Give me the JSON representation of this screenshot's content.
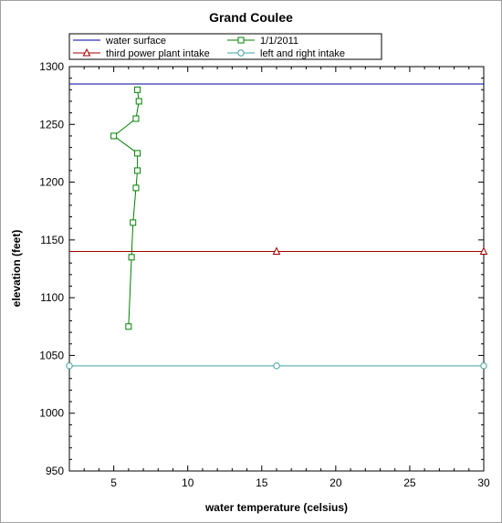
{
  "chart_data": {
    "type": "line",
    "title": "Grand Coulee",
    "xlabel": "water temperature (celsius)",
    "ylabel": "elevation (feet)",
    "xlim": [
      2,
      30
    ],
    "ylim": [
      950,
      1300
    ],
    "xticks": [
      5,
      10,
      15,
      20,
      25,
      30
    ],
    "yticks": [
      950,
      1000,
      1050,
      1100,
      1150,
      1200,
      1250,
      1300
    ],
    "grid": false,
    "legend_position": "top",
    "series": [
      {
        "name": "water surface",
        "color": "#0000a0",
        "marker": "none",
        "x": [
          2,
          30
        ],
        "y": [
          1285,
          1285
        ]
      },
      {
        "name": "1/1/2011",
        "color": "#008000",
        "marker": "square",
        "x": [
          6.6,
          6.7,
          6.5,
          5.0,
          6.6,
          6.6,
          6.5,
          6.3,
          6.2,
          6.0
        ],
        "y": [
          1280,
          1270,
          1255,
          1240,
          1225,
          1210,
          1195,
          1165,
          1135,
          1075
        ]
      },
      {
        "name": "third  power plant intake",
        "color": "#a00000",
        "marker": "triangle",
        "x": [
          2,
          16,
          30
        ],
        "y": [
          1140,
          1140,
          1140
        ],
        "marker_indices": [
          1,
          2
        ]
      },
      {
        "name": "left and right intake",
        "color": "#40a0a0",
        "marker": "circle",
        "x": [
          2,
          16,
          30
        ],
        "y": [
          1041,
          1041,
          1041
        ],
        "marker_indices": [
          0,
          1,
          2
        ]
      }
    ]
  }
}
